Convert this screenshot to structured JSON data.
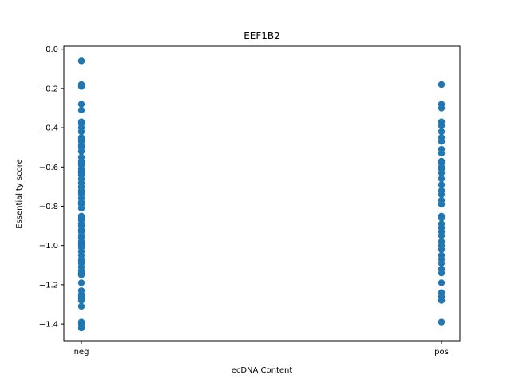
{
  "chart_data": {
    "type": "scatter",
    "title": "EEF1B2",
    "xlabel": "ecDNA Content",
    "ylabel": "Essentiality score",
    "categories": [
      "neg",
      "pos"
    ],
    "ylim": [
      -1.485,
      0.015
    ],
    "yticks": [
      0.0,
      -0.2,
      -0.4,
      -0.6,
      -0.8,
      -1.0,
      -1.2,
      -1.4
    ],
    "ytick_labels": [
      "0.0",
      "−0.2",
      "−0.4",
      "−0.6",
      "−0.8",
      "−1.0",
      "−1.2",
      "−1.4"
    ],
    "grid": false,
    "marker_color": "#1f77b4",
    "series": [
      {
        "values_neg": [
          -0.06,
          -0.06,
          -0.18,
          -0.19,
          -0.28,
          -0.31,
          -0.37,
          -0.38,
          -0.4,
          -0.42,
          -0.45,
          -0.46,
          -0.47,
          -0.49,
          -0.5,
          -0.52,
          -0.55,
          -0.57,
          -0.58,
          -0.59,
          -0.61,
          -0.62,
          -0.63,
          -0.64,
          -0.66,
          -0.68,
          -0.7,
          -0.72,
          -0.73,
          -0.74,
          -0.76,
          -0.78,
          -0.79,
          -0.81,
          -0.85,
          -0.86,
          -0.87,
          -0.89,
          -0.9,
          -0.92,
          -0.93,
          -0.95,
          -0.96,
          -0.98,
          -0.99,
          -1.0,
          -1.01,
          -1.03,
          -1.05,
          -1.07,
          -1.08,
          -1.09,
          -1.11,
          -1.13,
          -1.14,
          -1.15,
          -1.19,
          -1.23,
          -1.25,
          -1.26,
          -1.27,
          -1.28,
          -1.31,
          -1.39,
          -1.4,
          -1.42
        ],
        "values_pos": [
          -0.18,
          -0.28,
          -0.3,
          -0.37,
          -0.39,
          -0.42,
          -0.45,
          -0.47,
          -0.51,
          -0.53,
          -0.57,
          -0.58,
          -0.6,
          -0.61,
          -0.63,
          -0.66,
          -0.69,
          -0.72,
          -0.74,
          -0.77,
          -0.79,
          -0.85,
          -0.86,
          -0.89,
          -0.91,
          -0.93,
          -0.95,
          -0.98,
          -1.0,
          -1.02,
          -1.05,
          -1.07,
          -1.09,
          -1.12,
          -1.14,
          -1.19,
          -1.24,
          -1.26,
          -1.28,
          -1.39
        ]
      }
    ]
  }
}
